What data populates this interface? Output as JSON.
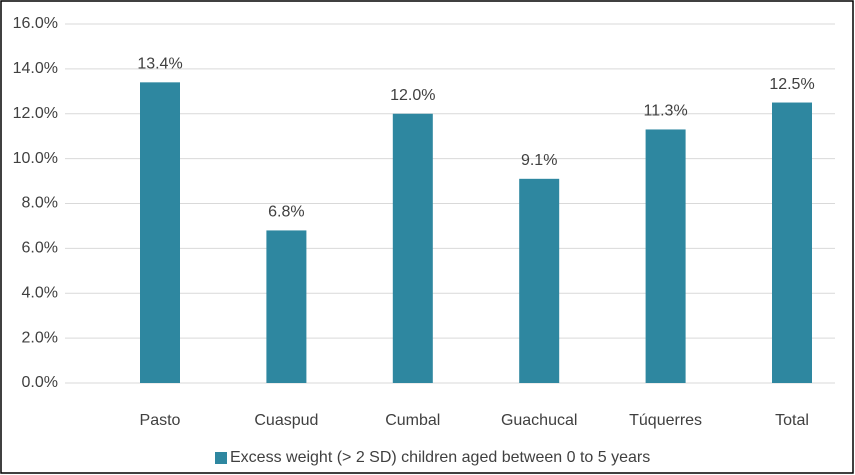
{
  "chart_data": {
    "type": "bar",
    "categories": [
      "Pasto",
      "Cuaspud",
      "Cumbal",
      "Guachucal",
      "Túquerres",
      "Total"
    ],
    "series": [
      {
        "name": "Excess weight (> 2 SD) children aged between 0 to 5 years",
        "color": "#2e87a0",
        "values": [
          13.4,
          6.8,
          12.0,
          9.1,
          11.3,
          12.5
        ],
        "value_labels": [
          "13.4%",
          "6.8%",
          "12.0%",
          "9.1%",
          "11.3%",
          "12.5%"
        ]
      }
    ],
    "ylim": [
      0,
      16
    ],
    "yticks": [
      {
        "value": 0,
        "label": "0.0%"
      },
      {
        "value": 2,
        "label": "2.0%"
      },
      {
        "value": 4,
        "label": "4.0%"
      },
      {
        "value": 6,
        "label": "6.0%"
      },
      {
        "value": 8,
        "label": "8.0%"
      },
      {
        "value": 10,
        "label": "10.0%"
      },
      {
        "value": 12,
        "label": "12.0%"
      },
      {
        "value": 14,
        "label": "14.0%"
      },
      {
        "value": 16,
        "label": "16.0%"
      }
    ],
    "grid": true,
    "legend": "bottom"
  }
}
